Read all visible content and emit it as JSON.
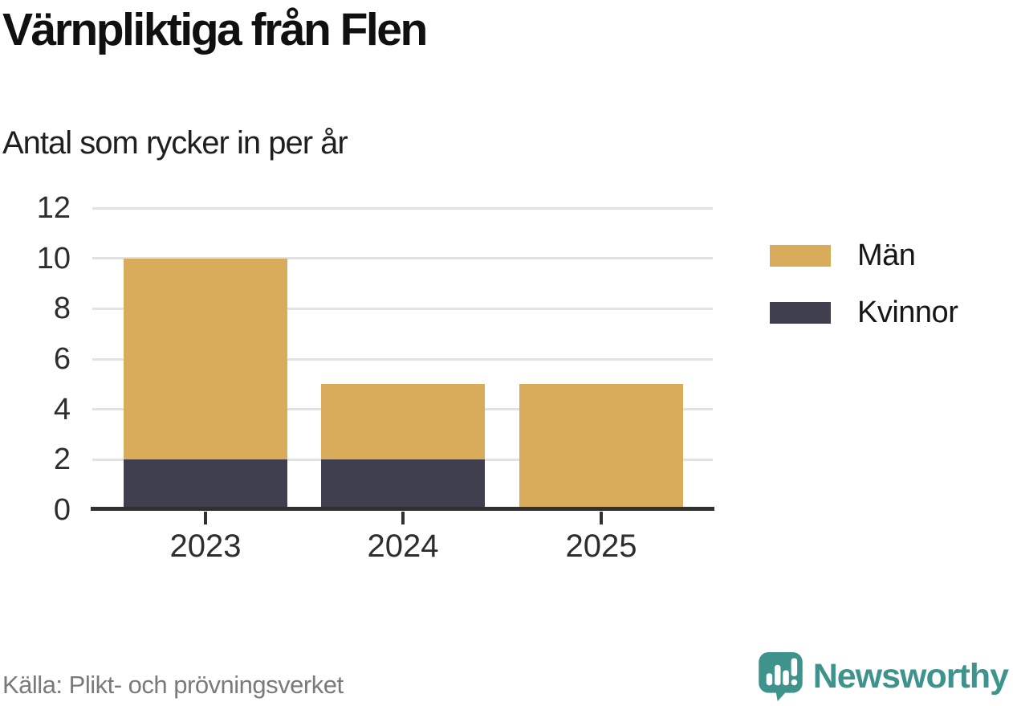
{
  "header": {
    "title": "Värnpliktiga från Flen",
    "subtitle": "Antal som rycker in per år"
  },
  "chart_data": {
    "type": "bar",
    "stacked": true,
    "title": "Värnpliktiga från Flen",
    "subtitle": "Antal som rycker in per år",
    "categories": [
      "2023",
      "2024",
      "2025"
    ],
    "series": [
      {
        "name": "Män",
        "color": "#d9ac5c",
        "values": [
          8,
          3,
          5
        ]
      },
      {
        "name": "Kvinnor",
        "color": "#403f4d",
        "values": [
          2,
          2,
          0
        ]
      }
    ],
    "stack_order_bottom_to_top": [
      "Kvinnor",
      "Män"
    ],
    "totals": [
      10,
      5,
      5
    ],
    "xlabel": "",
    "ylabel": "",
    "ylim": [
      0,
      12
    ],
    "yticks": [
      0,
      2,
      4,
      6,
      8,
      10,
      12
    ],
    "grid": true,
    "legend_position": "right"
  },
  "legend": {
    "items": [
      {
        "label": "Män",
        "color": "#d9ac5c"
      },
      {
        "label": "Kvinnor",
        "color": "#403f4d"
      }
    ]
  },
  "footer": {
    "source": "Källa: Plikt- och prövningsverket",
    "brand": "Newsworthy"
  },
  "colors": {
    "men_gold": "#d9ac5c",
    "women_dark": "#403f4d",
    "axis": "#313131",
    "gridline": "#e2e2e2",
    "brand_teal": "#3e948d",
    "source_gray": "#7a7a7a"
  },
  "icons": {
    "brand_logo": "newsworthy-speech-bubble-bar-chart-icon"
  }
}
